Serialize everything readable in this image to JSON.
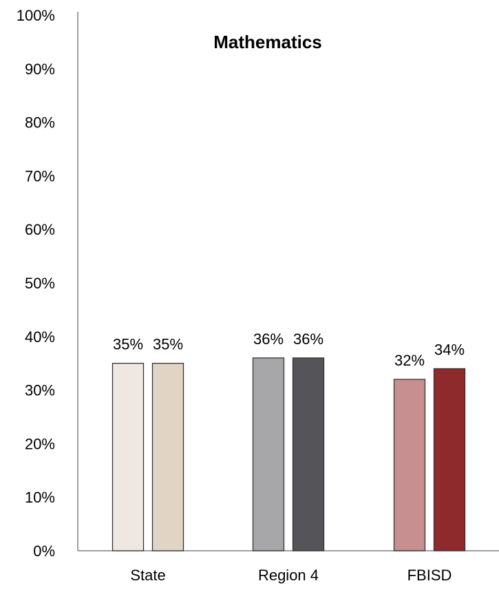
{
  "chart_data": {
    "type": "bar",
    "title": "Mathematics",
    "xlabel": "",
    "ylabel": "",
    "ylim": [
      0,
      100
    ],
    "yticks": [
      "0%",
      "10%",
      "20%",
      "30%",
      "40%",
      "50%",
      "60%",
      "70%",
      "80%",
      "90%",
      "100%"
    ],
    "grid": false,
    "legend": "none",
    "categories": [
      "State",
      "Region 4",
      "FBISD"
    ],
    "bars": [
      [
        {
          "value": 35,
          "label": "35%",
          "color": "#efe8e2"
        },
        {
          "value": 35,
          "label": "35%",
          "color": "#e0d5c5"
        }
      ],
      [
        {
          "value": 36,
          "label": "36%",
          "color": "#a7a7a9"
        },
        {
          "value": 36,
          "label": "36%",
          "color": "#555458"
        }
      ],
      [
        {
          "value": 32,
          "label": "32%",
          "color": "#c78f8f"
        },
        {
          "value": 34,
          "label": "34%",
          "color": "#8e2a2b"
        }
      ]
    ]
  }
}
